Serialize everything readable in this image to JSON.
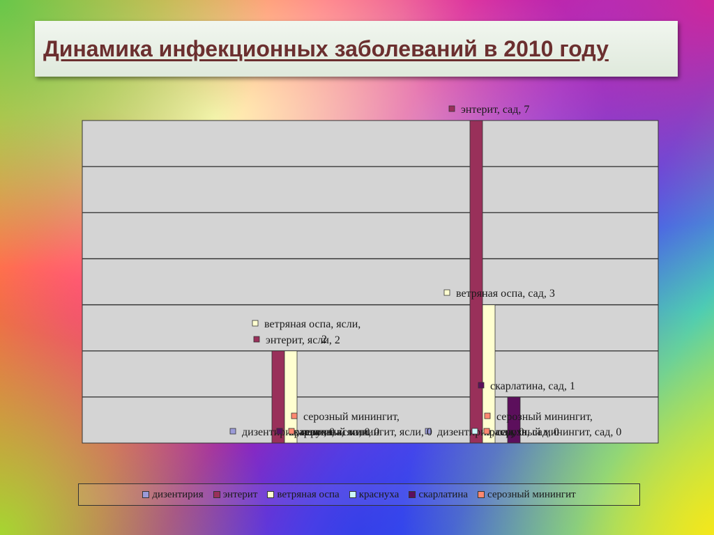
{
  "slide": {
    "title": "Динамика инфекционных заболеваний в 2010 году"
  },
  "colors": {
    "дизентирия": "#9b9bd8",
    "энтерит": "#99305a",
    "ветряная оспа": "#ffffd0",
    "краснуха": "#ccf7fa",
    "скарлатина": "#5c0f5c",
    "серозный минингит": "#ff8870",
    "plot_area": "#d4d4d4"
  },
  "legend": {
    "items": [
      {
        "label": "дизентирия"
      },
      {
        "label": "энтерит"
      },
      {
        "label": "ветряная оспа"
      },
      {
        "label": "краснуха"
      },
      {
        "label": "скарлатина"
      },
      {
        "label": "серозный минингит"
      }
    ]
  },
  "chart_data": {
    "type": "bar",
    "categories": [
      "ясли",
      "сад"
    ],
    "series": [
      {
        "name": "дизентирия",
        "values": [
          0,
          0
        ]
      },
      {
        "name": "энтерит",
        "values": [
          2,
          7
        ]
      },
      {
        "name": "ветряная оспа",
        "values": [
          2,
          3
        ]
      },
      {
        "name": "краснуха",
        "values": [
          0,
          0
        ]
      },
      {
        "name": "скарлатина",
        "values": [
          0,
          1
        ]
      },
      {
        "name": "серозный минингит",
        "values": [
          0,
          0
        ]
      }
    ],
    "ylim": [
      0,
      7
    ],
    "grid": true,
    "legend_position": "bottom",
    "data_labels": [
      "энтерит, сад, 7",
      "ветряная оспа, сад, 3",
      "ветряная оспа, ясли,",
      "2",
      "энтерит, ясли, 2",
      "скарлатина, сад, 1",
      "серозный минингит,",
      "серозный минингит,",
      "дизентирия, ясли, 0",
      "дизентирия, сад, 0",
      "краснуха, ясли, 0",
      "краснуха, сад, 0",
      "скарлатина, ясли, 0",
      "серозный минингит, ясли, 0",
      "серозный минингит, сад, 0"
    ]
  }
}
